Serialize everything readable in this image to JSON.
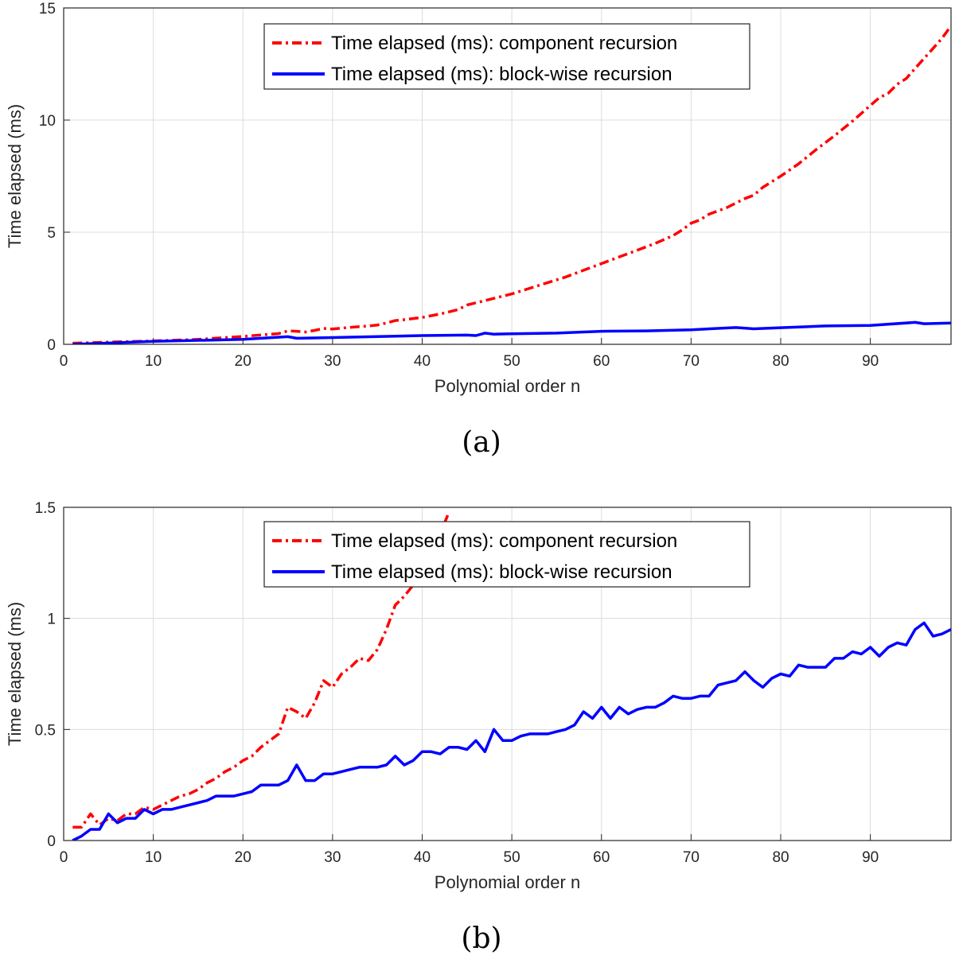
{
  "chart_data": [
    {
      "type": "line",
      "caption": "(a)",
      "xlabel": "Polynomial order n",
      "ylabel": "Time elapsed (ms)",
      "xlim": [
        0,
        99
      ],
      "ylim": [
        0,
        15
      ],
      "xticks": [
        0,
        10,
        20,
        30,
        40,
        50,
        60,
        70,
        80,
        90
      ],
      "xtick_labels": [
        "0",
        "10",
        "20",
        "30",
        "40",
        "50",
        "60",
        "70",
        "80",
        "90"
      ],
      "yticks": [
        0,
        5,
        10,
        15
      ],
      "ytick_labels": [
        "0",
        "5",
        "10",
        "15"
      ],
      "grid": true,
      "legend_position": "top-center",
      "series": [
        {
          "name": "Time elapsed (ms): component recursion",
          "color": "#ff0000",
          "style": "dash-dot",
          "x": [
            1,
            5,
            10,
            15,
            20,
            22,
            24,
            25,
            26,
            27,
            28,
            29,
            30,
            32,
            34,
            35,
            36,
            37,
            38,
            40,
            42,
            44,
            45,
            46,
            48,
            50,
            52,
            54,
            56,
            58,
            60,
            62,
            64,
            66,
            68,
            69,
            70,
            71,
            72,
            74,
            75,
            76,
            77,
            78,
            80,
            82,
            84,
            86,
            88,
            90,
            91,
            92,
            93,
            94,
            95,
            96,
            97,
            98,
            99
          ],
          "values": [
            0.05,
            0.1,
            0.15,
            0.22,
            0.35,
            0.42,
            0.48,
            0.6,
            0.58,
            0.55,
            0.62,
            0.71,
            0.68,
            0.76,
            0.82,
            0.86,
            0.95,
            1.06,
            1.1,
            1.2,
            1.35,
            1.55,
            1.75,
            1.85,
            2.05,
            2.25,
            2.5,
            2.75,
            3.0,
            3.3,
            3.6,
            3.9,
            4.2,
            4.5,
            4.85,
            5.1,
            5.4,
            5.55,
            5.8,
            6.1,
            6.3,
            6.5,
            6.65,
            7.0,
            7.5,
            8.05,
            8.7,
            9.3,
            9.95,
            10.65,
            11.0,
            11.2,
            11.6,
            11.85,
            12.3,
            12.75,
            13.2,
            13.65,
            14.2
          ]
        },
        {
          "name": "Time elapsed (ms): block-wise recursion",
          "color": "#0000ff",
          "style": "solid",
          "x": [
            1,
            10,
            20,
            25,
            26,
            30,
            40,
            45,
            46,
            47,
            48,
            50,
            55,
            60,
            65,
            70,
            75,
            77,
            80,
            85,
            90,
            95,
            96,
            99
          ],
          "values": [
            0.0,
            0.13,
            0.22,
            0.34,
            0.27,
            0.3,
            0.39,
            0.41,
            0.39,
            0.5,
            0.45,
            0.47,
            0.5,
            0.58,
            0.6,
            0.65,
            0.75,
            0.69,
            0.74,
            0.82,
            0.84,
            0.98,
            0.92,
            0.95
          ]
        }
      ]
    },
    {
      "type": "line",
      "caption": "(b)",
      "xlabel": "Polynomial order n",
      "ylabel": "Time elapsed (ms)",
      "xlim": [
        0,
        99
      ],
      "ylim": [
        0,
        1.5
      ],
      "xticks": [
        0,
        10,
        20,
        30,
        40,
        50,
        60,
        70,
        80,
        90
      ],
      "xtick_labels": [
        "0",
        "10",
        "20",
        "30",
        "40",
        "50",
        "60",
        "70",
        "80",
        "90"
      ],
      "yticks": [
        0,
        0.5,
        1,
        1.5
      ],
      "ytick_labels": [
        "0",
        "0.5",
        "1",
        "1.5"
      ],
      "grid": true,
      "legend_position": "top-center",
      "series": [
        {
          "name": "Time elapsed (ms): component recursion",
          "color": "#ff0000",
          "style": "dash-dot",
          "x": [
            1,
            2,
            3,
            4,
            5,
            6,
            7,
            8,
            9,
            10,
            11,
            12,
            13,
            14,
            15,
            16,
            17,
            18,
            19,
            20,
            21,
            22,
            23,
            24,
            25,
            26,
            27,
            28,
            29,
            30,
            31,
            32,
            33,
            34,
            35,
            36,
            37,
            38,
            39,
            40,
            41,
            42,
            43
          ],
          "values": [
            0.06,
            0.06,
            0.12,
            0.07,
            0.1,
            0.09,
            0.12,
            0.12,
            0.15,
            0.14,
            0.16,
            0.18,
            0.2,
            0.21,
            0.23,
            0.26,
            0.28,
            0.31,
            0.33,
            0.36,
            0.38,
            0.42,
            0.45,
            0.48,
            0.6,
            0.58,
            0.55,
            0.62,
            0.72,
            0.69,
            0.75,
            0.78,
            0.82,
            0.81,
            0.86,
            0.95,
            1.06,
            1.1,
            1.15,
            1.22,
            1.3,
            1.38,
            1.48
          ]
        },
        {
          "name": "Time elapsed (ms): block-wise recursion",
          "color": "#0000ff",
          "style": "solid",
          "x": [
            1,
            2,
            3,
            4,
            5,
            6,
            7,
            8,
            9,
            10,
            11,
            12,
            13,
            14,
            15,
            16,
            17,
            18,
            19,
            20,
            21,
            22,
            23,
            24,
            25,
            26,
            27,
            28,
            29,
            30,
            31,
            32,
            33,
            34,
            35,
            36,
            37,
            38,
            39,
            40,
            41,
            42,
            43,
            44,
            45,
            46,
            47,
            48,
            49,
            50,
            51,
            52,
            53,
            54,
            55,
            56,
            57,
            58,
            59,
            60,
            61,
            62,
            63,
            64,
            65,
            66,
            67,
            68,
            69,
            70,
            71,
            72,
            73,
            74,
            75,
            76,
            77,
            78,
            79,
            80,
            81,
            82,
            83,
            84,
            85,
            86,
            87,
            88,
            89,
            90,
            91,
            92,
            93,
            94,
            95,
            96,
            97,
            98,
            99
          ],
          "values": [
            0.0,
            0.02,
            0.05,
            0.05,
            0.12,
            0.08,
            0.1,
            0.1,
            0.14,
            0.12,
            0.14,
            0.14,
            0.15,
            0.16,
            0.17,
            0.18,
            0.2,
            0.2,
            0.2,
            0.21,
            0.22,
            0.25,
            0.25,
            0.25,
            0.27,
            0.34,
            0.27,
            0.27,
            0.3,
            0.3,
            0.31,
            0.32,
            0.33,
            0.33,
            0.33,
            0.34,
            0.38,
            0.34,
            0.36,
            0.4,
            0.4,
            0.39,
            0.42,
            0.42,
            0.41,
            0.45,
            0.4,
            0.5,
            0.45,
            0.45,
            0.47,
            0.48,
            0.48,
            0.48,
            0.49,
            0.5,
            0.52,
            0.58,
            0.55,
            0.6,
            0.55,
            0.6,
            0.57,
            0.59,
            0.6,
            0.6,
            0.62,
            0.65,
            0.64,
            0.64,
            0.65,
            0.65,
            0.7,
            0.71,
            0.72,
            0.76,
            0.72,
            0.69,
            0.73,
            0.75,
            0.74,
            0.79,
            0.78,
            0.78,
            0.78,
            0.82,
            0.82,
            0.85,
            0.84,
            0.87,
            0.83,
            0.87,
            0.89,
            0.88,
            0.95,
            0.98,
            0.92,
            0.93,
            0.95
          ]
        }
      ]
    }
  ]
}
